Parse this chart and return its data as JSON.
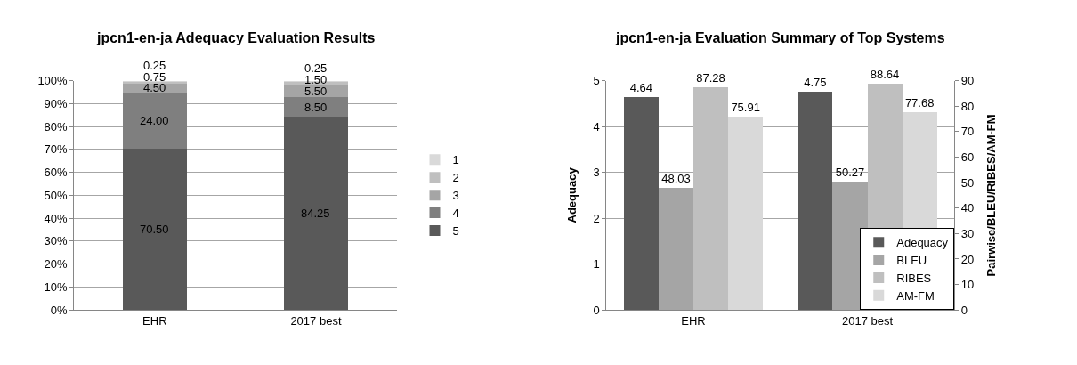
{
  "chart_data": [
    {
      "type": "bar",
      "title": "jpcn1-en-ja Adequacy Evaluation Results",
      "categories": [
        "EHR",
        "2017 best"
      ],
      "stacked": true,
      "series": [
        {
          "name": "5",
          "color": "#595959",
          "values": [
            70.5,
            84.25
          ],
          "value_labels": [
            "70.50",
            "84.25"
          ]
        },
        {
          "name": "4",
          "color": "#7f7f7f",
          "values": [
            24.0,
            8.5
          ],
          "value_labels": [
            "24.00",
            "8.50"
          ]
        },
        {
          "name": "3",
          "color": "#a5a5a5",
          "values": [
            4.5,
            5.5
          ],
          "value_labels": [
            "4.50",
            "5.50"
          ]
        },
        {
          "name": "2",
          "color": "#bfbfbf",
          "values": [
            0.75,
            1.5
          ],
          "value_labels": [
            "0.75",
            "1.50"
          ]
        },
        {
          "name": "1",
          "color": "#d9d9d9",
          "values": [
            0.25,
            0.25
          ],
          "value_labels": [
            "0.25",
            "0.25"
          ]
        }
      ],
      "ylim": [
        0,
        100
      ],
      "yticks": [
        {
          "value": 0,
          "label": "0%"
        },
        {
          "value": 10,
          "label": "10%"
        },
        {
          "value": 20,
          "label": "20%"
        },
        {
          "value": 30,
          "label": "30%"
        },
        {
          "value": 40,
          "label": "40%"
        },
        {
          "value": 50,
          "label": "50%"
        },
        {
          "value": 60,
          "label": "60%"
        },
        {
          "value": 70,
          "label": "70%"
        },
        {
          "value": 80,
          "label": "80%"
        },
        {
          "value": 90,
          "label": "90%"
        },
        {
          "value": 100,
          "label": "100%"
        }
      ],
      "grid": "y",
      "legend": "right"
    },
    {
      "type": "bar",
      "title": "jpcn1-en-ja Evaluation Summary of Top Systems",
      "categories": [
        "EHR",
        "2017 best"
      ],
      "ylabel": "Adequacy",
      "y2label": "Pairwise/BLEU/RIBES/AM-FM",
      "series": [
        {
          "name": "Adequacy",
          "color": "#595959",
          "values": [
            4.64,
            4.75
          ]
        },
        {
          "name": "BLEU",
          "color": "#a5a5a5",
          "values": [
            48.03,
            50.27
          ],
          "axis": "y2"
        },
        {
          "name": "RIBES",
          "color": "#bfbfbf",
          "values": [
            87.28,
            88.64
          ],
          "axis": "y2"
        },
        {
          "name": "AM-FM",
          "color": "#d9d9d9",
          "values": [
            75.91,
            77.68
          ],
          "axis": "y2"
        }
      ],
      "ylim": [
        0,
        5
      ],
      "yticks": [
        0,
        1,
        2,
        3,
        4,
        5
      ],
      "y2lim": [
        0,
        90
      ],
      "y2ticks": [
        0,
        10,
        20,
        30,
        40,
        50,
        60,
        70,
        80,
        90
      ],
      "data_labels": true,
      "grid": "y",
      "legend": "bottom right"
    }
  ]
}
